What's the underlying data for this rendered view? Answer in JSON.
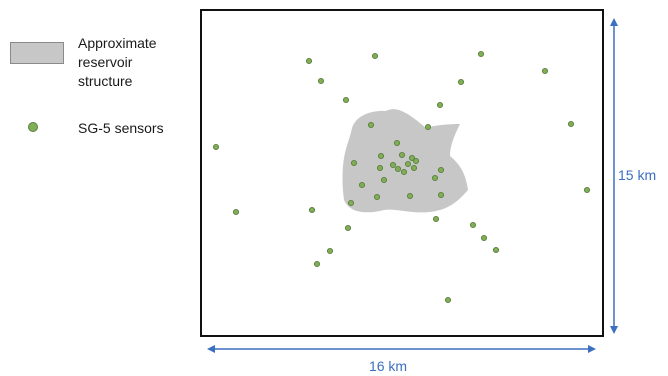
{
  "legend": {
    "reservoir_label": "Approximate\nreservoir\nstructure",
    "sensors_label": "SG-5 sensors",
    "reservoir_color": "#c7c7c7",
    "sensor_color": "#7fae57",
    "sensor_stroke": "#5b7f3e"
  },
  "dimensions": {
    "height_label": "15 km",
    "width_label": "16 km",
    "arrow_color": "#3b6fc0"
  }
}
